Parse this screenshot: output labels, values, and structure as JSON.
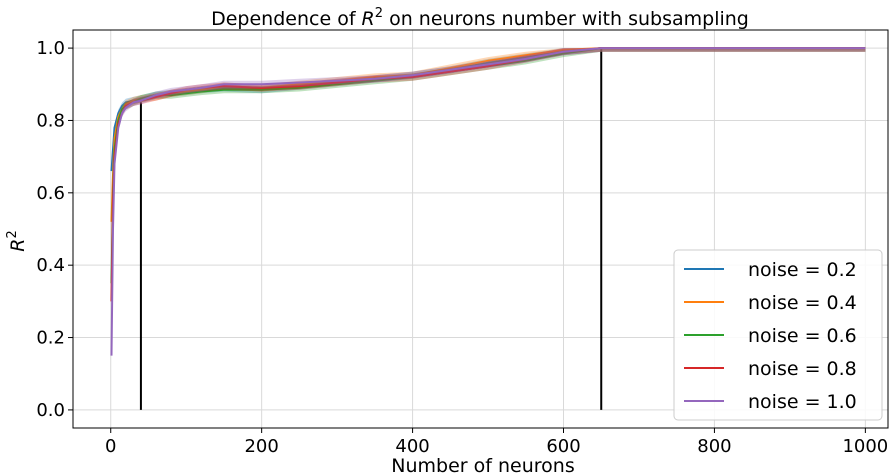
{
  "chart_data": {
    "type": "line",
    "title": {
      "prefix": "Dependence of ",
      "var": "R",
      "sup": "2",
      "suffix": " on neurons number with subsampling"
    },
    "xlabel": "Number of neurons",
    "ylabel": {
      "var": "R",
      "sup": "2"
    },
    "xlim": [
      -50,
      1030
    ],
    "ylim": [
      -0.05,
      1.05
    ],
    "xticks": [
      0,
      200,
      400,
      600,
      800,
      1000
    ],
    "yticks": [
      0.0,
      0.2,
      0.4,
      0.6,
      0.8,
      1.0
    ],
    "xtick_labels": [
      "0",
      "200",
      "400",
      "600",
      "800",
      "1000"
    ],
    "ytick_labels": [
      "0.0",
      "0.2",
      "0.4",
      "0.6",
      "0.8",
      "1.0"
    ],
    "grid": true,
    "legend_position": "lower-right",
    "vlines": [
      {
        "x": 40,
        "ymin": 0,
        "ymax": 0.85,
        "color": "#000000"
      },
      {
        "x": 650,
        "ymin": 0,
        "ymax": 1.0,
        "color": "#000000"
      }
    ],
    "series": [
      {
        "name": "noise = 0.2",
        "color": "#1f77b4",
        "x": [
          1,
          3,
          5,
          10,
          15,
          20,
          30,
          40,
          60,
          80,
          100,
          120,
          150,
          200,
          250,
          300,
          350,
          400,
          450,
          500,
          550,
          600,
          650,
          700,
          800,
          900,
          1000
        ],
        "y": [
          0.66,
          0.72,
          0.78,
          0.82,
          0.84,
          0.85,
          0.855,
          0.86,
          0.87,
          0.875,
          0.88,
          0.885,
          0.89,
          0.885,
          0.895,
          0.905,
          0.915,
          0.925,
          0.94,
          0.96,
          0.975,
          0.99,
          1.0,
          1.0,
          1.0,
          1.0,
          1.0
        ]
      },
      {
        "name": "noise = 0.4",
        "color": "#ff7f0e",
        "x": [
          1,
          3,
          5,
          10,
          15,
          20,
          30,
          40,
          60,
          80,
          100,
          120,
          150,
          200,
          250,
          300,
          350,
          400,
          450,
          500,
          550,
          600,
          650,
          700,
          800,
          900,
          1000
        ],
        "y": [
          0.52,
          0.65,
          0.75,
          0.81,
          0.83,
          0.845,
          0.855,
          0.86,
          0.865,
          0.875,
          0.88,
          0.885,
          0.895,
          0.89,
          0.9,
          0.91,
          0.92,
          0.925,
          0.945,
          0.965,
          0.98,
          0.995,
          1.0,
          1.0,
          1.0,
          1.0,
          1.0
        ]
      },
      {
        "name": "noise = 0.6",
        "color": "#2ca02c",
        "x": [
          1,
          3,
          5,
          10,
          15,
          20,
          30,
          40,
          60,
          80,
          100,
          120,
          150,
          200,
          250,
          300,
          350,
          400,
          450,
          500,
          550,
          600,
          650,
          700,
          800,
          900,
          1000
        ],
        "y": [
          0.35,
          0.6,
          0.72,
          0.8,
          0.83,
          0.84,
          0.85,
          0.86,
          0.87,
          0.87,
          0.875,
          0.88,
          0.885,
          0.885,
          0.89,
          0.9,
          0.91,
          0.92,
          0.935,
          0.95,
          0.965,
          0.985,
          1.0,
          1.0,
          1.0,
          1.0,
          1.0
        ]
      },
      {
        "name": "noise = 0.8",
        "color": "#d62728",
        "x": [
          1,
          3,
          5,
          10,
          15,
          20,
          30,
          40,
          60,
          80,
          100,
          120,
          150,
          200,
          250,
          300,
          350,
          400,
          450,
          500,
          550,
          600,
          650,
          700,
          800,
          900,
          1000
        ],
        "y": [
          0.3,
          0.58,
          0.7,
          0.79,
          0.82,
          0.84,
          0.85,
          0.855,
          0.865,
          0.875,
          0.885,
          0.89,
          0.895,
          0.89,
          0.895,
          0.905,
          0.915,
          0.92,
          0.935,
          0.95,
          0.97,
          0.99,
          1.0,
          1.0,
          1.0,
          1.0,
          1.0
        ]
      },
      {
        "name": "noise = 1.0",
        "color": "#9467bd",
        "x": [
          1,
          3,
          5,
          10,
          15,
          20,
          30,
          40,
          60,
          80,
          100,
          120,
          150,
          200,
          250,
          300,
          350,
          400,
          450,
          500,
          550,
          600,
          650,
          700,
          800,
          900,
          1000
        ],
        "y": [
          0.15,
          0.5,
          0.68,
          0.78,
          0.82,
          0.835,
          0.85,
          0.855,
          0.87,
          0.88,
          0.885,
          0.89,
          0.9,
          0.9,
          0.905,
          0.91,
          0.915,
          0.925,
          0.94,
          0.955,
          0.97,
          0.99,
          1.0,
          1.0,
          1.0,
          1.0,
          1.0
        ]
      }
    ]
  }
}
